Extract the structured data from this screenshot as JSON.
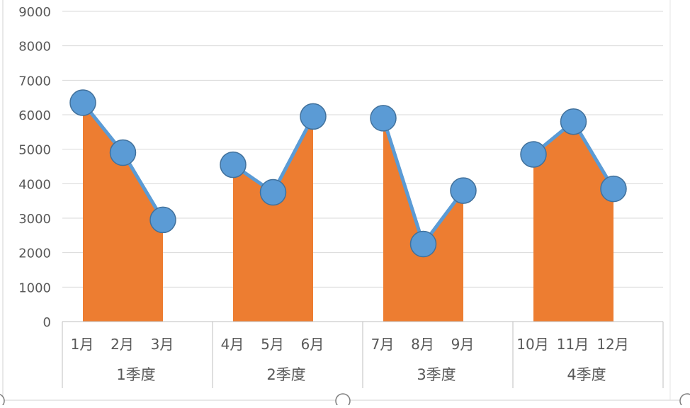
{
  "chart_data": {
    "type": "area",
    "title": "",
    "xlabel": "",
    "ylabel": "",
    "ylim": [
      0,
      9000
    ],
    "yticks": [
      "0",
      "1000",
      "2000",
      "3000",
      "4000",
      "5000",
      "6000",
      "7000",
      "8000",
      "9000"
    ],
    "grid": true,
    "legend": "none",
    "colors": {
      "area": "#ED7D31",
      "line": "#5B9BD5",
      "marker_fill": "#5B9BD5",
      "marker_stroke": "#41719C",
      "grid": "#D9D9D9",
      "axis": "#BFBFBF",
      "text": "#595959"
    },
    "groups": [
      {
        "label": "1季度",
        "categories": [
          "1月",
          "2月",
          "3月"
        ],
        "values": [
          6350,
          4900,
          2950
        ]
      },
      {
        "label": "2季度",
        "categories": [
          "4月",
          "5月",
          "6月"
        ],
        "values": [
          4550,
          3750,
          5950
        ]
      },
      {
        "label": "3季度",
        "categories": [
          "7月",
          "8月",
          "9月"
        ],
        "values": [
          5900,
          2250,
          3800
        ]
      },
      {
        "label": "4季度",
        "categories": [
          "10月",
          "11月",
          "12月"
        ],
        "values": [
          4850,
          5800,
          3850
        ]
      }
    ]
  }
}
